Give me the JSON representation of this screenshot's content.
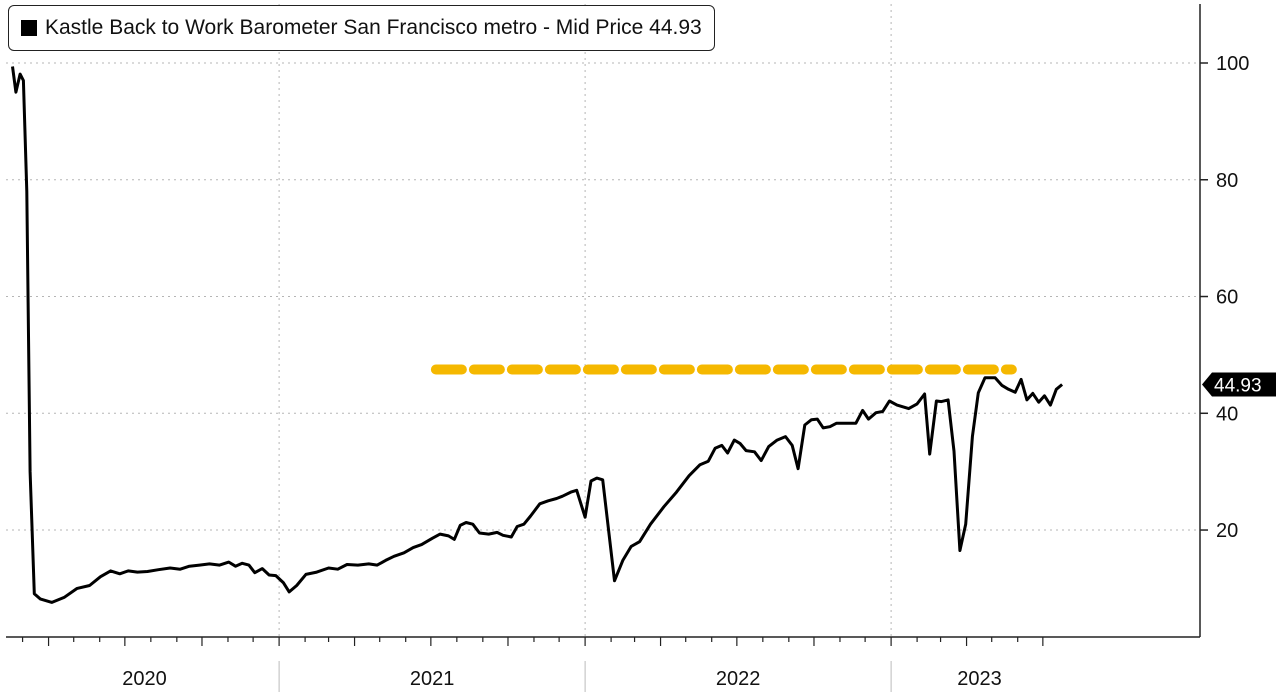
{
  "legend": {
    "label": "Kastle Back to Work Barometer San Francisco metro - Mid Price 44.93"
  },
  "last_value_label": "44.93",
  "colors": {
    "line": "#000000",
    "dashed_line": "#f5b800",
    "grid": "#b5b5b5"
  },
  "chart_data": {
    "type": "line",
    "title": "",
    "xlabel": "",
    "ylabel": "",
    "ylim": [
      0,
      110
    ],
    "yticks": [
      20,
      40,
      60,
      80,
      100
    ],
    "xlim": [
      "2020-02-15",
      "2023-07-31"
    ],
    "x_tick_labels": [
      "2020",
      "2021",
      "2022",
      "2023"
    ],
    "grid": true,
    "legend_position": "top-left",
    "y_axis_side": "right",
    "reference_lines": [
      {
        "style": "dashed",
        "color": "#f5b800",
        "y": 47.5,
        "x_start": "2021-07-07",
        "x_end": "2023-05-25"
      }
    ],
    "series": [
      {
        "name": "Kastle Back to Work Barometer San Francisco metro - Mid Price",
        "points": [
          [
            "2020-02-18",
            99.4
          ],
          [
            "2020-02-22",
            95.0
          ],
          [
            "2020-02-27",
            98.1
          ],
          [
            "2020-03-02",
            97.0
          ],
          [
            "2020-03-06",
            78.0
          ],
          [
            "2020-03-10",
            30.0
          ],
          [
            "2020-03-15",
            9.1
          ],
          [
            "2020-03-22",
            8.2
          ],
          [
            "2020-04-05",
            7.6
          ],
          [
            "2020-04-20",
            8.5
          ],
          [
            "2020-05-05",
            10.0
          ],
          [
            "2020-05-20",
            10.5
          ],
          [
            "2020-06-02",
            12.0
          ],
          [
            "2020-06-14",
            13.0
          ],
          [
            "2020-06-25",
            12.5
          ],
          [
            "2020-07-05",
            13.0
          ],
          [
            "2020-07-16",
            12.8
          ],
          [
            "2020-07-28",
            12.9
          ],
          [
            "2020-08-10",
            13.2
          ],
          [
            "2020-08-24",
            13.5
          ],
          [
            "2020-09-05",
            13.3
          ],
          [
            "2020-09-16",
            13.8
          ],
          [
            "2020-09-28",
            14.0
          ],
          [
            "2020-10-10",
            14.2
          ],
          [
            "2020-10-22",
            14.0
          ],
          [
            "2020-11-02",
            14.5
          ],
          [
            "2020-11-10",
            13.8
          ],
          [
            "2020-11-18",
            14.3
          ],
          [
            "2020-11-26",
            14.0
          ],
          [
            "2020-12-03",
            12.7
          ],
          [
            "2020-12-12",
            13.4
          ],
          [
            "2020-12-20",
            12.3
          ],
          [
            "2020-12-28",
            12.2
          ],
          [
            "2021-01-06",
            11.0
          ],
          [
            "2021-01-13",
            9.4
          ],
          [
            "2021-01-22",
            10.5
          ],
          [
            "2021-02-02",
            12.4
          ],
          [
            "2021-02-15",
            12.8
          ],
          [
            "2021-03-01",
            13.5
          ],
          [
            "2021-03-12",
            13.3
          ],
          [
            "2021-03-23",
            14.1
          ],
          [
            "2021-04-05",
            14.0
          ],
          [
            "2021-04-18",
            14.2
          ],
          [
            "2021-04-28",
            14.0
          ],
          [
            "2021-05-08",
            14.8
          ],
          [
            "2021-05-18",
            15.5
          ],
          [
            "2021-05-30",
            16.1
          ],
          [
            "2021-06-10",
            17.0
          ],
          [
            "2021-06-20",
            17.5
          ],
          [
            "2021-07-03",
            18.6
          ],
          [
            "2021-07-12",
            19.3
          ],
          [
            "2021-07-22",
            19.0
          ],
          [
            "2021-07-29",
            18.4
          ],
          [
            "2021-08-05",
            20.8
          ],
          [
            "2021-08-12",
            21.3
          ],
          [
            "2021-08-20",
            21.0
          ],
          [
            "2021-08-28",
            19.5
          ],
          [
            "2021-09-08",
            19.3
          ],
          [
            "2021-09-18",
            19.6
          ],
          [
            "2021-09-25",
            19.1
          ],
          [
            "2021-10-05",
            18.8
          ],
          [
            "2021-10-12",
            20.6
          ],
          [
            "2021-10-20",
            21.0
          ],
          [
            "2021-10-28",
            22.4
          ],
          [
            "2021-11-08",
            24.5
          ],
          [
            "2021-11-18",
            25.0
          ],
          [
            "2021-11-28",
            25.4
          ],
          [
            "2021-12-05",
            25.8
          ],
          [
            "2021-12-15",
            26.5
          ],
          [
            "2021-12-22",
            26.8
          ],
          [
            "2022-01-01",
            22.2
          ],
          [
            "2022-01-08",
            28.4
          ],
          [
            "2022-01-15",
            28.9
          ],
          [
            "2022-01-22",
            28.6
          ],
          [
            "2022-02-05",
            11.3
          ],
          [
            "2022-02-15",
            14.8
          ],
          [
            "2022-02-25",
            17.2
          ],
          [
            "2022-03-07",
            18.0
          ],
          [
            "2022-03-20",
            21.0
          ],
          [
            "2022-04-05",
            24.0
          ],
          [
            "2022-04-20",
            26.5
          ],
          [
            "2022-05-05",
            29.3
          ],
          [
            "2022-05-18",
            31.2
          ],
          [
            "2022-05-28",
            31.8
          ],
          [
            "2022-06-05",
            34.0
          ],
          [
            "2022-06-13",
            34.5
          ],
          [
            "2022-06-20",
            33.2
          ],
          [
            "2022-06-28",
            35.4
          ],
          [
            "2022-07-05",
            34.8
          ],
          [
            "2022-07-12",
            33.6
          ],
          [
            "2022-07-22",
            33.4
          ],
          [
            "2022-07-30",
            31.9
          ],
          [
            "2022-08-08",
            34.3
          ],
          [
            "2022-08-18",
            35.4
          ],
          [
            "2022-08-28",
            36.0
          ],
          [
            "2022-09-05",
            34.5
          ],
          [
            "2022-09-12",
            30.5
          ],
          [
            "2022-09-20",
            38.0
          ],
          [
            "2022-09-28",
            38.9
          ],
          [
            "2022-10-05",
            39.0
          ],
          [
            "2022-10-12",
            37.5
          ],
          [
            "2022-10-20",
            37.7
          ],
          [
            "2022-10-28",
            38.3
          ],
          [
            "2022-11-08",
            38.3
          ],
          [
            "2022-11-20",
            38.3
          ],
          [
            "2022-11-28",
            40.5
          ],
          [
            "2022-12-05",
            39.0
          ],
          [
            "2022-12-14",
            40.1
          ],
          [
            "2022-12-22",
            40.3
          ],
          [
            "2022-12-30",
            42.1
          ],
          [
            "2023-01-08",
            41.4
          ],
          [
            "2023-01-22",
            40.8
          ],
          [
            "2023-02-01",
            41.6
          ],
          [
            "2023-02-10",
            43.3
          ],
          [
            "2023-02-16",
            33.0
          ],
          [
            "2023-02-24",
            42.1
          ],
          [
            "2023-03-02",
            42.0
          ],
          [
            "2023-03-10",
            42.3
          ],
          [
            "2023-03-17",
            33.5
          ],
          [
            "2023-03-24",
            16.5
          ],
          [
            "2023-03-31",
            21.0
          ],
          [
            "2023-04-08",
            36.0
          ],
          [
            "2023-04-15",
            43.5
          ],
          [
            "2023-04-23",
            46.1
          ],
          [
            "2023-05-05",
            46.1
          ],
          [
            "2023-05-13",
            44.8
          ],
          [
            "2023-05-21",
            44.1
          ],
          [
            "2023-05-29",
            43.6
          ],
          [
            "2023-06-05",
            45.8
          ],
          [
            "2023-06-12",
            42.3
          ],
          [
            "2023-06-19",
            43.4
          ],
          [
            "2023-06-26",
            41.9
          ],
          [
            "2023-07-03",
            43.0
          ],
          [
            "2023-07-10",
            41.4
          ],
          [
            "2023-07-17",
            44.1
          ],
          [
            "2023-07-24",
            44.93
          ]
        ]
      }
    ]
  }
}
